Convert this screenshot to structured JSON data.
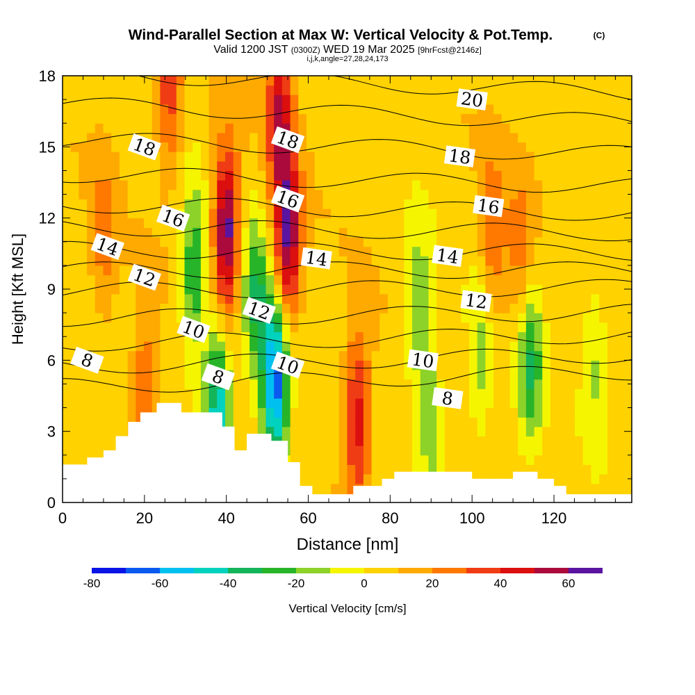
{
  "chart_data": {
    "type": "heatmap",
    "title": "Wind-Parallel Section at Max W: Vertical Velocity & Pot.Temp.",
    "title_mark": "(C)",
    "subtitle_valid": "Valid 1200 JST",
    "subtitle_utc": "(0300Z)",
    "subtitle_date": "WED 19 Mar 2025",
    "subtitle_fcst": "[9hrFcst@2146z]",
    "subtitle_index": "i,j,k,angle=27,28,24,173",
    "xlabel": "Distance [nm]",
    "ylabel": "Height [Kft MSL]",
    "xlim": [
      0,
      139
    ],
    "ylim": [
      0,
      18
    ],
    "x_ticks": [
      0,
      20,
      40,
      60,
      80,
      100,
      120
    ],
    "y_ticks": [
      0,
      3,
      6,
      9,
      12,
      15,
      18
    ],
    "grid": false,
    "colorbar": {
      "label": "Vertical Velocity [cm/s]",
      "bounds": [
        -80,
        -70,
        -60,
        -50,
        -40,
        -30,
        -20,
        -10,
        0,
        10,
        20,
        30,
        40,
        50,
        60,
        70
      ],
      "tick_values": [
        -80,
        -60,
        -40,
        -20,
        0,
        20,
        40,
        60
      ],
      "colors": [
        "#0a14e6",
        "#0a5af0",
        "#00c0f0",
        "#00d2be",
        "#14b45a",
        "#28b428",
        "#8cd228",
        "#f5f500",
        "#ffd200",
        "#ffaa00",
        "#ff7800",
        "#f03c14",
        "#dc0f0f",
        "#aa0a3c",
        "#5a14a0"
      ]
    },
    "terrain": [
      [
        0,
        1.6
      ],
      [
        6,
        1.6
      ],
      [
        6,
        1.9
      ],
      [
        10,
        1.9
      ],
      [
        10,
        2.2
      ],
      [
        13,
        2.2
      ],
      [
        13,
        2.8
      ],
      [
        16,
        2.8
      ],
      [
        16,
        3.4
      ],
      [
        19,
        3.4
      ],
      [
        19,
        3.8
      ],
      [
        23,
        3.8
      ],
      [
        23,
        4.2
      ],
      [
        29,
        4.2
      ],
      [
        29,
        3.8
      ],
      [
        39,
        3.8
      ],
      [
        39,
        3.2
      ],
      [
        42,
        3.2
      ],
      [
        42,
        2.2
      ],
      [
        45,
        2.2
      ],
      [
        45,
        2.9
      ],
      [
        51,
        2.9
      ],
      [
        51,
        2.6
      ],
      [
        55,
        2.6
      ],
      [
        55,
        1.7
      ],
      [
        58,
        1.7
      ],
      [
        58,
        0.7
      ],
      [
        61,
        0.7
      ],
      [
        61,
        0.35
      ],
      [
        71,
        0.35
      ],
      [
        71,
        0.7
      ],
      [
        78,
        0.7
      ],
      [
        78,
        1.0
      ],
      [
        81,
        1.0
      ],
      [
        81,
        1.3
      ],
      [
        100,
        1.3
      ],
      [
        100,
        1.0
      ],
      [
        110,
        1.0
      ],
      [
        110,
        1.3
      ],
      [
        116,
        1.3
      ],
      [
        116,
        1.0
      ],
      [
        120,
        1.0
      ],
      [
        120,
        0.7
      ],
      [
        123,
        0.7
      ],
      [
        123,
        0.35
      ],
      [
        139,
        0.35
      ]
    ],
    "velocity_features": [
      {
        "x": 40,
        "z": 11.5,
        "w": 62
      },
      {
        "x": 55,
        "z": 11.0,
        "w": 58
      },
      {
        "x": 53,
        "z": 16.5,
        "w": 42
      },
      {
        "x": 26,
        "z": 17.5,
        "w": 32
      },
      {
        "x": 72,
        "z": 3.5,
        "w": 42
      },
      {
        "x": 105,
        "z": 11.0,
        "w": 25
      },
      {
        "x": 112,
        "z": 10.0,
        "w": 22
      },
      {
        "x": 20,
        "z": 4.3,
        "w": 26
      },
      {
        "x": 10,
        "z": 11.0,
        "w": 18
      },
      {
        "x": 52,
        "z": 5.0,
        "w": -75
      },
      {
        "x": 38,
        "z": 4.0,
        "w": -55
      },
      {
        "x": 32,
        "z": 9.5,
        "w": -35
      },
      {
        "x": 47,
        "z": 8.5,
        "w": -35
      },
      {
        "x": 87,
        "z": 8.0,
        "w": -26
      },
      {
        "x": 114,
        "z": 6.0,
        "w": -38
      },
      {
        "x": 102,
        "z": 6.0,
        "w": -22
      },
      {
        "x": 90,
        "z": 3.5,
        "w": -20
      },
      {
        "x": 130,
        "z": 6.0,
        "w": -18
      }
    ],
    "theta_contours": [
      {
        "value": 8,
        "z": 5.2,
        "label_at": [
          [
            6,
            6.0
          ],
          [
            38,
            5.3
          ],
          [
            94,
            4.4
          ]
        ]
      },
      {
        "value": 9,
        "z": 6.0,
        "label_at": []
      },
      {
        "value": 10,
        "z": 6.9,
        "label_at": [
          [
            32,
            7.3
          ],
          [
            55,
            5.8
          ],
          [
            88,
            6.0
          ]
        ]
      },
      {
        "value": 11,
        "z": 7.9,
        "label_at": []
      },
      {
        "value": 12,
        "z": 9.0,
        "label_at": [
          [
            20,
            9.5
          ],
          [
            48,
            8.1
          ],
          [
            101,
            8.5
          ]
        ]
      },
      {
        "value": 13,
        "z": 9.8,
        "label_at": []
      },
      {
        "value": 14,
        "z": 10.6,
        "label_at": [
          [
            11,
            10.8
          ],
          [
            62,
            10.3
          ],
          [
            94,
            10.4
          ]
        ]
      },
      {
        "value": 15,
        "z": 11.5,
        "label_at": []
      },
      {
        "value": 16,
        "z": 12.4,
        "label_at": [
          [
            27,
            12.0
          ],
          [
            55,
            12.8
          ],
          [
            104,
            12.5
          ]
        ]
      },
      {
        "value": 17,
        "z": 13.6,
        "label_at": []
      },
      {
        "value": 18,
        "z": 15.0,
        "label_at": [
          [
            20,
            15.0
          ],
          [
            55,
            15.3
          ],
          [
            97,
            14.6
          ]
        ]
      },
      {
        "value": 19,
        "z": 16.4,
        "label_at": []
      },
      {
        "value": 20,
        "z": 17.7,
        "label_at": [
          [
            100,
            17.0
          ]
        ]
      }
    ]
  }
}
